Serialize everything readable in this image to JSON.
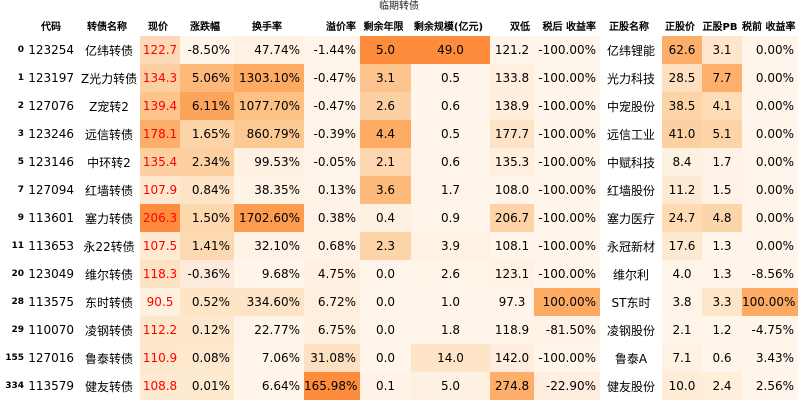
{
  "title": "临期转债",
  "columns": [
    "",
    "代码",
    "转债名称",
    "现价",
    "涨跌幅",
    "换手率",
    "溢价率",
    "剩余年限",
    "剩余规模(亿元)",
    "双低",
    "税后 收益率",
    "正股名称",
    "正股价",
    "正股PB",
    "税前 收益率"
  ],
  "rows": [
    {
      "idx": "0",
      "code": "123254",
      "name": "亿纬转债",
      "price": "122.7",
      "chg": "-8.50%",
      "turnover": "47.74%",
      "premium": "-1.44%",
      "years": "5.0",
      "size": "49.0",
      "dual": "121.2",
      "ytm_after": "-100.00%",
      "stock": "亿纬锂能",
      "stock_price": "62.6",
      "pb": "3.1",
      "ytm_before": "0.00%"
    },
    {
      "idx": "1",
      "code": "123197",
      "name": "Z光力转债",
      "price": "134.3",
      "chg": "5.06%",
      "turnover": "1303.10%",
      "premium": "-0.47%",
      "years": "3.1",
      "size": "0.5",
      "dual": "133.8",
      "ytm_after": "-100.00%",
      "stock": "光力科技",
      "stock_price": "28.5",
      "pb": "7.7",
      "ytm_before": "0.00%"
    },
    {
      "idx": "2",
      "code": "127076",
      "name": "Z宠转2",
      "price": "139.4",
      "chg": "6.11%",
      "turnover": "1077.70%",
      "premium": "-0.47%",
      "years": "2.6",
      "size": "0.6",
      "dual": "138.9",
      "ytm_after": "-100.00%",
      "stock": "中宠股份",
      "stock_price": "38.5",
      "pb": "4.1",
      "ytm_before": "0.00%"
    },
    {
      "idx": "3",
      "code": "123246",
      "name": "远信转债",
      "price": "178.1",
      "chg": "1.65%",
      "turnover": "860.79%",
      "premium": "-0.39%",
      "years": "4.4",
      "size": "0.5",
      "dual": "177.7",
      "ytm_after": "-100.00%",
      "stock": "远信工业",
      "stock_price": "41.0",
      "pb": "5.1",
      "ytm_before": "0.00%"
    },
    {
      "idx": "5",
      "code": "123146",
      "name": "中环转2",
      "price": "135.4",
      "chg": "2.34%",
      "turnover": "99.53%",
      "premium": "-0.05%",
      "years": "2.1",
      "size": "0.6",
      "dual": "135.3",
      "ytm_after": "-100.00%",
      "stock": "中赋科技",
      "stock_price": "8.4",
      "pb": "1.7",
      "ytm_before": "0.00%"
    },
    {
      "idx": "7",
      "code": "127094",
      "name": "红墙转债",
      "price": "107.9",
      "chg": "0.84%",
      "turnover": "38.35%",
      "premium": "0.13%",
      "years": "3.6",
      "size": "1.7",
      "dual": "108.0",
      "ytm_after": "-100.00%",
      "stock": "红墙股份",
      "stock_price": "11.2",
      "pb": "1.5",
      "ytm_before": "0.00%"
    },
    {
      "idx": "9",
      "code": "113601",
      "name": "塞力转债",
      "price": "206.3",
      "chg": "1.50%",
      "turnover": "1702.60%",
      "premium": "0.38%",
      "years": "0.4",
      "size": "0.9",
      "dual": "206.7",
      "ytm_after": "-100.00%",
      "stock": "塞力医疗",
      "stock_price": "24.7",
      "pb": "4.8",
      "ytm_before": "0.00%"
    },
    {
      "idx": "11",
      "code": "113653",
      "name": "永22转债",
      "price": "107.5",
      "chg": "1.41%",
      "turnover": "32.10%",
      "premium": "0.68%",
      "years": "2.3",
      "size": "3.9",
      "dual": "108.1",
      "ytm_after": "-100.00%",
      "stock": "永冠新材",
      "stock_price": "17.6",
      "pb": "1.3",
      "ytm_before": "0.00%"
    },
    {
      "idx": "20",
      "code": "123049",
      "name": "维尔转债",
      "price": "118.3",
      "chg": "-0.36%",
      "turnover": "9.68%",
      "premium": "4.75%",
      "years": "0.0",
      "size": "2.6",
      "dual": "123.1",
      "ytm_after": "-100.00%",
      "stock": "维尔利",
      "stock_price": "4.0",
      "pb": "1.3",
      "ytm_before": "-8.56%"
    },
    {
      "idx": "28",
      "code": "113575",
      "name": "东时转债",
      "price": "90.5",
      "chg": "0.52%",
      "turnover": "334.60%",
      "premium": "6.72%",
      "years": "0.0",
      "size": "1.0",
      "dual": "97.3",
      "ytm_after": "100.00%",
      "stock": "ST东时",
      "stock_price": "3.8",
      "pb": "3.3",
      "ytm_before": "100.00%"
    },
    {
      "idx": "29",
      "code": "110070",
      "name": "凌钢转债",
      "price": "112.2",
      "chg": "0.12%",
      "turnover": "22.77%",
      "premium": "6.75%",
      "years": "0.0",
      "size": "1.8",
      "dual": "118.9",
      "ytm_after": "-81.50%",
      "stock": "凌钢股份",
      "stock_price": "2.1",
      "pb": "1.2",
      "ytm_before": "-4.75%"
    },
    {
      "idx": "155",
      "code": "127016",
      "name": "鲁泰转债",
      "price": "110.9",
      "chg": "0.08%",
      "turnover": "7.06%",
      "premium": "31.08%",
      "years": "0.0",
      "size": "14.0",
      "dual": "142.0",
      "ytm_after": "-100.00%",
      "stock": "鲁泰A",
      "stock_price": "7.1",
      "pb": "0.6",
      "ytm_before": "3.43%"
    },
    {
      "idx": "334",
      "code": "113579",
      "name": "健友转债",
      "price": "108.8",
      "chg": "0.01%",
      "turnover": "6.64%",
      "premium": "165.98%",
      "years": "0.1",
      "size": "5.0",
      "dual": "274.8",
      "ytm_after": "-22.90%",
      "stock": "健友股份",
      "stock_price": "10.0",
      "pb": "2.4",
      "ytm_before": "2.56%"
    }
  ],
  "colors": {
    "price": [
      "#fdd9b5",
      "#fdd0a2",
      "#fdc48c",
      "#fdae6b",
      "#fdd0a2",
      "#fee8cf",
      "#fd8d3c",
      "#fee9d2",
      "#fee2c4",
      "#fff1e0",
      "#fee6cb",
      "#fee8cd",
      "#fee9d1"
    ],
    "chg": [
      "#fff5eb",
      "#fdb97a",
      "#fda45b",
      "#fdd4a7",
      "#fdd0a1",
      "#fee4c6",
      "#fdd7ad",
      "#fdd9b1",
      "#feeadb",
      "#fee5c8",
      "#fee8cd",
      "#fee9cf",
      "#feeacf"
    ],
    "turnover": [
      "#fff2e5",
      "#fdaa62",
      "#fdc283",
      "#fdc993",
      "#fff1e2",
      "#fff3e6",
      "#fd9c4d",
      "#fff3e7",
      "#fff5ea",
      "#fee4c6",
      "#fff4e9",
      "#fff5ea",
      "#fff5eb"
    ],
    "premium": [
      "#fff5eb",
      "#fff4e9",
      "#fff4e9",
      "#fff4e9",
      "#fff4e9",
      "#fff4e8",
      "#fff3e7",
      "#fff3e6",
      "#fff0e1",
      "#ffefde",
      "#ffefde",
      "#fde0c2",
      "#fd8d3c"
    ],
    "years": [
      "#fd8d3c",
      "#fdc48d",
      "#fdd0a3",
      "#fdaa62",
      "#fdd6ad",
      "#fdba7a",
      "#fff1e1",
      "#fdd3a8",
      "#fff5eb",
      "#fff5eb",
      "#fff5eb",
      "#fff5eb",
      "#fff3e8"
    ],
    "size": [
      "#fd8d3c",
      "#fff5eb",
      "#fff5eb",
      "#fff5eb",
      "#fff5eb",
      "#fff4e9",
      "#fff5eb",
      "#fff2e5",
      "#fff4e8",
      "#fff5ea",
      "#fff4e9",
      "#fee5c8",
      "#fff1e2"
    ],
    "dual": [
      "#fff4e9",
      "#ffefde",
      "#ffeedc",
      "#fee3c6",
      "#ffefde",
      "#fff5eb",
      "#fed3a8",
      "#fff5eb",
      "#fff2e4",
      "#fff5ea",
      "#fff4e8",
      "#ffede0",
      "#fdae6b"
    ],
    "ytm_after": [
      "#fff5eb",
      "#fff5eb",
      "#fff5eb",
      "#fff5eb",
      "#fff5eb",
      "#fff5eb",
      "#fff5eb",
      "#fff5eb",
      "#fff5eb",
      "#fdaa62",
      "#fff3e8",
      "#fff5eb",
      "#ffede0"
    ],
    "stock_price": [
      "#fdae6b",
      "#fee0c1",
      "#fdd4a7",
      "#fdd0a1",
      "#fff1e2",
      "#fee9d2",
      "#fedbb5",
      "#feead3",
      "#fff4e9",
      "#fff4e9",
      "#fff5eb",
      "#fff2e5",
      "#feecd7"
    ],
    "pb": [
      "#fee6cc",
      "#fdb06b",
      "#fedcb5",
      "#fdd4a7",
      "#fff2e6",
      "#fff3e8",
      "#fdd5aa",
      "#fff5ea",
      "#fff5ea",
      "#fee6cb",
      "#fff5eb",
      "#fff5eb",
      "#feeeda"
    ],
    "ytm_before": [
      "#fff5eb",
      "#fff5eb",
      "#fff5eb",
      "#fff5eb",
      "#fff5eb",
      "#fff5eb",
      "#fff5eb",
      "#fff5eb",
      "#fff5eb",
      "#fdaa62",
      "#fff5eb",
      "#fff5eb",
      "#fff5eb"
    ]
  }
}
